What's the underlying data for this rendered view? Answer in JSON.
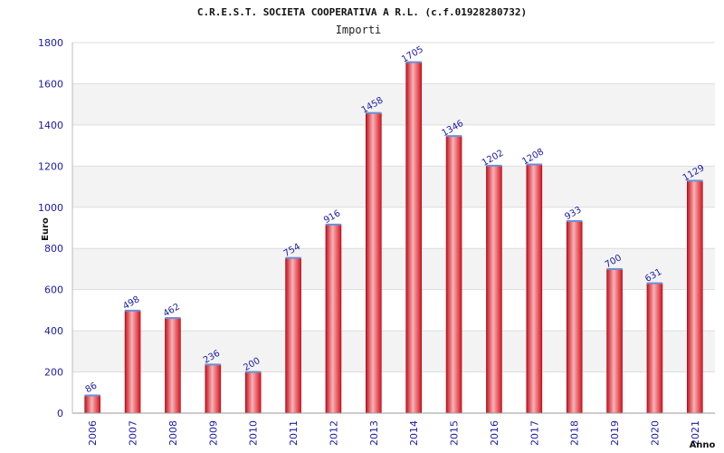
{
  "chart_data": {
    "type": "bar",
    "title": "C.R.E.S.T. SOCIETA COOPERATIVA A R.L. (c.f.01928280732)",
    "subtitle": "Importi",
    "xlabel": "Anno",
    "ylabel": "Euro",
    "ylim": [
      0,
      1800
    ],
    "yticks": [
      0,
      200,
      400,
      600,
      800,
      1000,
      1200,
      1400,
      1600,
      1800
    ],
    "grid": true,
    "categories": [
      "2006",
      "2007",
      "2008",
      "2009",
      "2010",
      "2011",
      "2012",
      "2013",
      "2014",
      "2015",
      "2016",
      "2017",
      "2018",
      "2019",
      "2020",
      "2021"
    ],
    "values": [
      86,
      498,
      462,
      236,
      200,
      754,
      916,
      1458,
      1705,
      1346,
      1202,
      1208,
      933,
      700,
      631,
      1129
    ],
    "bar_color": "#e8232e",
    "bar_highlight": "#f6b4b8",
    "label_color": "#1a1aa6"
  }
}
